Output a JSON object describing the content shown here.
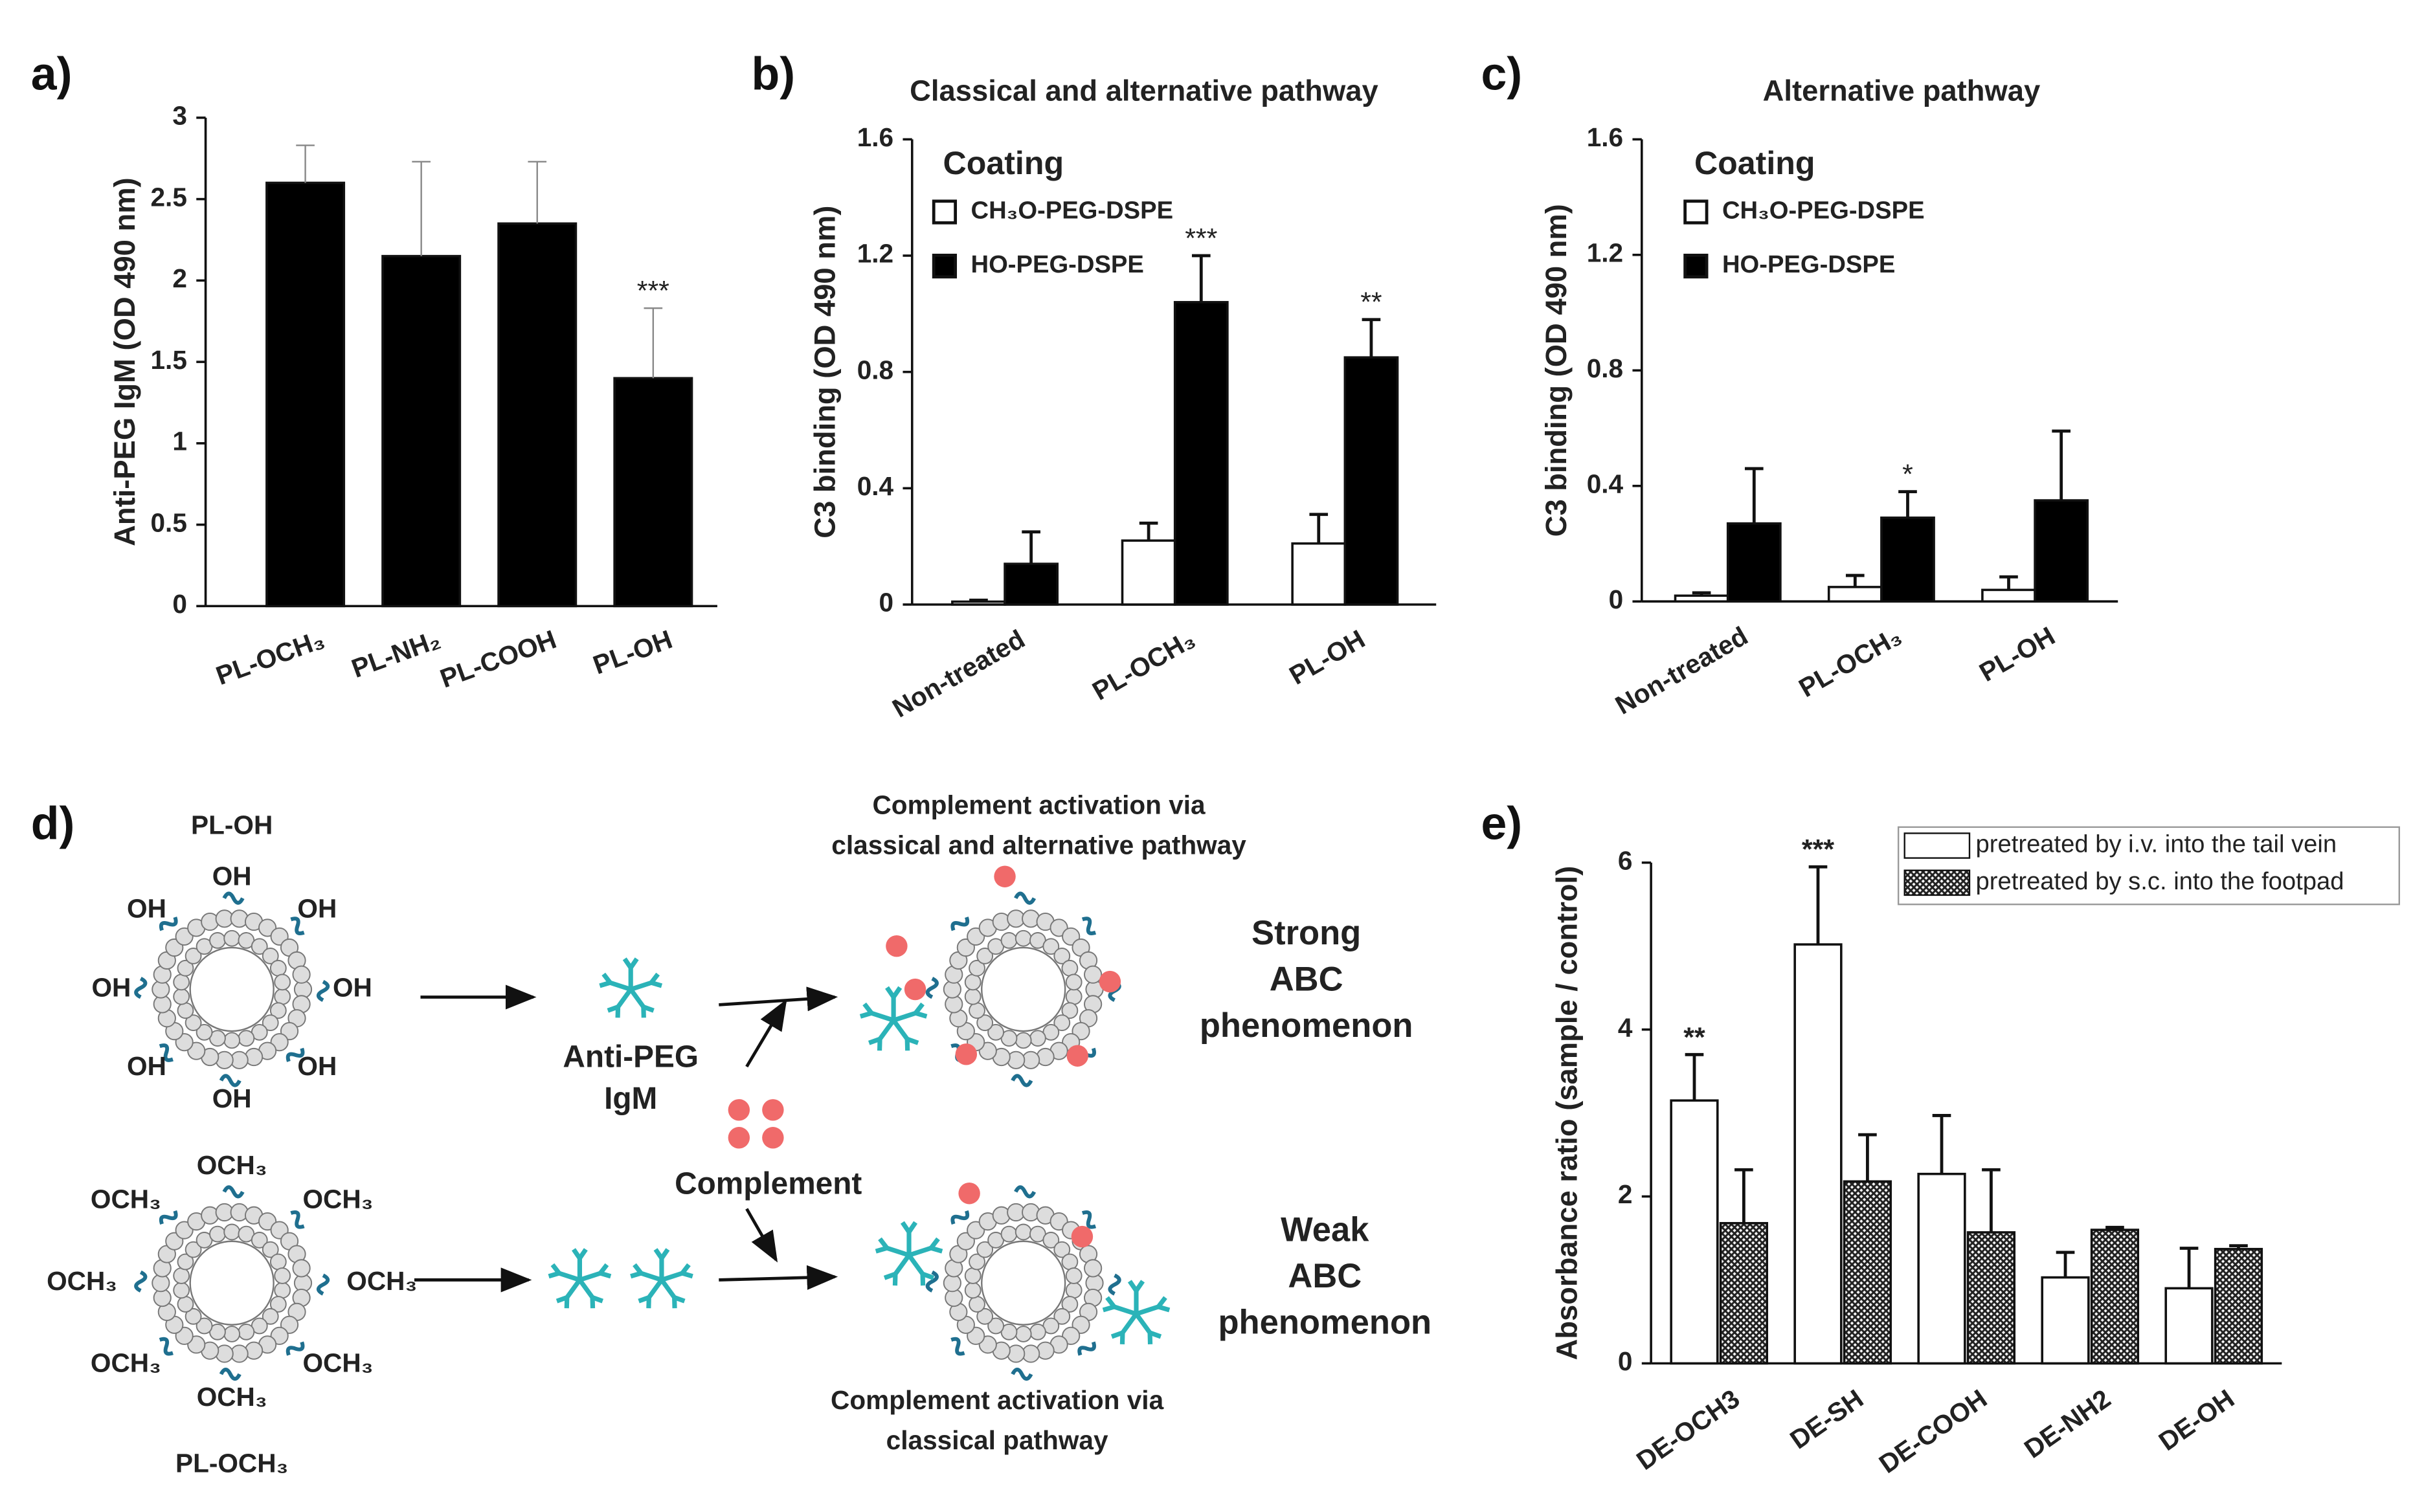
{
  "chart_data": [
    {
      "type": "bar",
      "panel": "a)",
      "ylabel": "Anti-PEG IgM (OD 490 nm)",
      "categories": [
        "PL-OCH₃",
        "PL-NH₂",
        "PL-COOH",
        "PL-OH"
      ],
      "series": [
        {
          "color": "#000000",
          "values": [
            2.6,
            2.15,
            2.35,
            1.4
          ],
          "errors": [
            0.23,
            0.58,
            0.38,
            0.43
          ],
          "significance": [
            null,
            null,
            null,
            "***"
          ]
        }
      ],
      "ylim": [
        0,
        3
      ],
      "yticks": [
        0,
        0.5,
        1,
        1.5,
        2,
        2.5,
        3
      ]
    },
    {
      "type": "bar",
      "panel": "b)",
      "title": "Classical and alternative pathway",
      "ylabel": "C3 binding (OD 490 nm)",
      "categories": [
        "Non-treated",
        "PL-OCH₃",
        "PL-OH"
      ],
      "legend_title": "Coating",
      "series": [
        {
          "name": "CH₃O-PEG-DSPE",
          "color": "#ffffff",
          "values": [
            0.01,
            0.22,
            0.21
          ],
          "errors": [
            0.005,
            0.06,
            0.1
          ],
          "significance": [
            null,
            null,
            null
          ]
        },
        {
          "name": "HO-PEG-DSPE",
          "color": "#000000",
          "values": [
            0.14,
            1.04,
            0.85
          ],
          "errors": [
            0.11,
            0.16,
            0.13
          ],
          "significance": [
            null,
            "***",
            "**"
          ]
        }
      ],
      "ylim": [
        0,
        1.6
      ],
      "yticks": [
        0,
        0.4,
        0.8,
        1.2,
        1.6
      ]
    },
    {
      "type": "bar",
      "panel": "c)",
      "title": "Alternative pathway",
      "ylabel": "C3 binding (OD 490 nm)",
      "categories": [
        "Non-treated",
        "PL-OCH₃",
        "PL-OH"
      ],
      "legend_title": "Coating",
      "series": [
        {
          "name": "CH₃O-PEG-DSPE",
          "color": "#ffffff",
          "values": [
            0.02,
            0.05,
            0.04
          ],
          "errors": [
            0.01,
            0.04,
            0.045
          ],
          "significance": [
            null,
            null,
            null
          ]
        },
        {
          "name": "HO-PEG-DSPE",
          "color": "#000000",
          "values": [
            0.27,
            0.29,
            0.35
          ],
          "errors": [
            0.19,
            0.09,
            0.24
          ],
          "significance": [
            null,
            "*",
            null
          ]
        }
      ],
      "ylim": [
        0,
        1.6
      ],
      "yticks": [
        0,
        0.4,
        0.8,
        1.2,
        1.6
      ]
    },
    {
      "type": "bar",
      "panel": "e)",
      "ylabel": "Absorbance ratio (sample / control)",
      "categories": [
        "DE-OCH3",
        "DE-SH",
        "DE-COOH",
        "DE-NH2",
        "DE-OH"
      ],
      "legend_box": true,
      "series": [
        {
          "name": "pretreated by i.v. into the tail vein",
          "color": "#ffffff",
          "values": [
            3.15,
            5.02,
            2.27,
            1.03,
            0.9
          ],
          "errors": [
            0.55,
            0.93,
            0.7,
            0.3,
            0.48
          ],
          "significance": [
            "**",
            "***",
            null,
            null,
            null
          ]
        },
        {
          "name": "pretreated by s.c. into the footpad",
          "color": "#555555",
          "pattern": "crosshatch",
          "values": [
            1.68,
            2.18,
            1.57,
            1.6,
            1.37
          ],
          "errors": [
            0.64,
            0.56,
            0.75,
            0.03,
            0.04
          ],
          "significance": [
            null,
            null,
            null,
            null,
            null
          ]
        }
      ],
      "ylim": [
        0,
        6
      ],
      "yticks": [
        0,
        2,
        4,
        6
      ]
    }
  ],
  "diagram": {
    "label": "d)",
    "top_particle": {
      "name": "PL-OH",
      "groups": [
        "OH",
        "OH",
        "OH",
        "OH",
        "OH",
        "OH",
        "OH",
        "OH"
      ]
    },
    "bottom_particle": {
      "name": "PL-OCH₃",
      "groups": [
        "OCH₃",
        "OCH₃",
        "OCH₃",
        "OCH₃",
        "OCH₃",
        "OCH₃",
        "OCH₃",
        "OCH₃"
      ]
    },
    "antibody_label": [
      "Anti-PEG",
      "IgM"
    ],
    "complement_label": "Complement",
    "top_caption": [
      "Complement activation via",
      "classical and alternative pathway"
    ],
    "bottom_caption": [
      "Complement activation via",
      "classical pathway"
    ],
    "strong_result": [
      "Strong",
      "ABC",
      "phenomenon"
    ],
    "weak_result": [
      "Weak",
      "ABC",
      "phenomenon"
    ]
  }
}
